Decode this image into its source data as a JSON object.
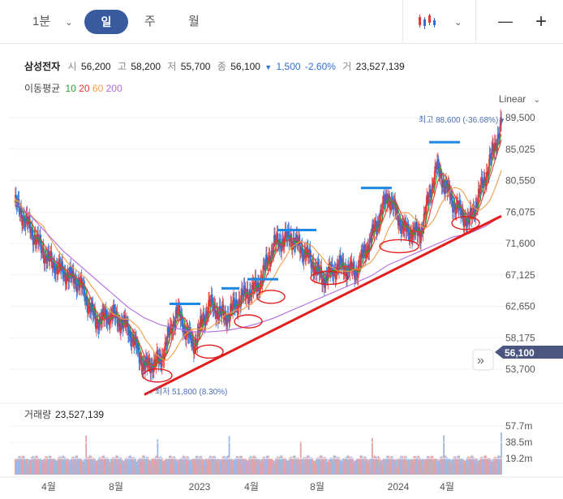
{
  "toolbar": {
    "interval": "1분",
    "tabs": [
      "일",
      "주",
      "월"
    ],
    "zoom_out": "—",
    "zoom_in": "+"
  },
  "quote": {
    "name": "삼성전자",
    "open_label": "시",
    "open": "56,200",
    "high_label": "고",
    "high": "58,200",
    "low_label": "저",
    "low": "55,700",
    "close_label": "종",
    "close": "56,100",
    "change_arrow": "▼",
    "change": "1,500",
    "change_pct": "-2.60%",
    "volume_label": "거",
    "volume": "23,527,139"
  },
  "moving_average": {
    "label": "이동평균",
    "periods": [
      {
        "period": "10",
        "color": "#2ca02c"
      },
      {
        "period": "20",
        "color": "#e53935"
      },
      {
        "period": "60",
        "color": "#f39c4a"
      },
      {
        "period": "200",
        "color": "#b36ae2"
      }
    ]
  },
  "scale_mode": "Linear",
  "price_axis_labels": [
    "89,500",
    "85,025",
    "80,550",
    "76,075",
    "71,600",
    "67,125",
    "62,650",
    "58,175",
    "53,700"
  ],
  "current_price_label": "56,100",
  "max_annotation": {
    "label": "최고",
    "value": "88,600 (-36.68%)",
    "arrow": "▼"
  },
  "min_annotation": {
    "label": "최저",
    "value": "51,800 (8.30%)",
    "arrow": "←"
  },
  "volume_panel": {
    "label": "거래량",
    "value": "23,527,139",
    "axis_labels": [
      "57.7m",
      "38.5m",
      "19.2m"
    ]
  },
  "time_axis_labels": [
    "4월",
    "8월",
    "2023",
    "4월",
    "8월",
    "2024",
    "4월"
  ],
  "colors": {
    "accent": "#3a5aa0",
    "up": "#e53935",
    "down": "#2f6fd6",
    "trendline": "#e11d1d",
    "resistance": "#1e88e5",
    "price_tag": "#4a5680"
  },
  "chart_data": {
    "type": "candlestick",
    "ylim": [
      51000,
      90500
    ],
    "y_ticks": [
      89500,
      85025,
      80550,
      76075,
      71600,
      67125,
      62650,
      58175,
      53700
    ],
    "x_ticks": [
      "4월",
      "8월",
      "2023",
      "4월",
      "8월",
      "2024",
      "4월"
    ],
    "close_path": [
      {
        "date": "2022-01",
        "close": 77500
      },
      {
        "date": "2022-02",
        "close": 73500
      },
      {
        "date": "2022-03",
        "close": 69500
      },
      {
        "date": "2022-04",
        "close": 67500
      },
      {
        "date": "2022-05",
        "close": 66000
      },
      {
        "date": "2022-06",
        "close": 60500
      },
      {
        "date": "2022-07",
        "close": 61500
      },
      {
        "date": "2022-08",
        "close": 59500
      },
      {
        "date": "2022-09",
        "close": 54000
      },
      {
        "date": "2022-10",
        "close": 55000
      },
      {
        "date": "2022-11",
        "close": 62000
      },
      {
        "date": "2022-12",
        "close": 57000
      },
      {
        "date": "2023-01",
        "close": 63000
      },
      {
        "date": "2023-02",
        "close": 61000
      },
      {
        "date": "2023-03",
        "close": 64000
      },
      {
        "date": "2023-04",
        "close": 65500
      },
      {
        "date": "2023-05",
        "close": 71500
      },
      {
        "date": "2023-06",
        "close": 72500
      },
      {
        "date": "2023-07",
        "close": 70000
      },
      {
        "date": "2023-08",
        "close": 66500
      },
      {
        "date": "2023-09",
        "close": 68500
      },
      {
        "date": "2023-10",
        "close": 67500
      },
      {
        "date": "2023-11",
        "close": 72500
      },
      {
        "date": "2023-12",
        "close": 78500
      },
      {
        "date": "2024-01",
        "close": 73500
      },
      {
        "date": "2024-02",
        "close": 73000
      },
      {
        "date": "2024-03",
        "close": 82500
      },
      {
        "date": "2024-04",
        "close": 77500
      },
      {
        "date": "2024-05",
        "close": 74500
      },
      {
        "date": "2024-06",
        "close": 81000
      },
      {
        "date": "2024-07",
        "close": 88600
      }
    ],
    "ma_series": [
      {
        "period": "200",
        "values": [
          77500,
          75500,
          73000,
          70500,
          68500,
          66500,
          64500,
          62500,
          61000,
          60000,
          59500,
          59000,
          59000,
          59200,
          59600,
          60200,
          61000,
          62000,
          63000,
          64000,
          65000,
          66000,
          67000,
          68500,
          69500,
          70500,
          71500,
          72500,
          73000,
          74000,
          75500
        ]
      }
    ],
    "trendline": {
      "from": {
        "date": "2022-10",
        "price": 51000
      },
      "to": {
        "date": "2024-07",
        "price": 75500
      }
    },
    "resistance_levels": [
      63000,
      65200,
      66500,
      73500,
      79500,
      86000
    ],
    "volume": {
      "max": 57700000,
      "ticks": [
        57700000,
        38500000,
        19200000
      ],
      "last": 23527139
    }
  }
}
